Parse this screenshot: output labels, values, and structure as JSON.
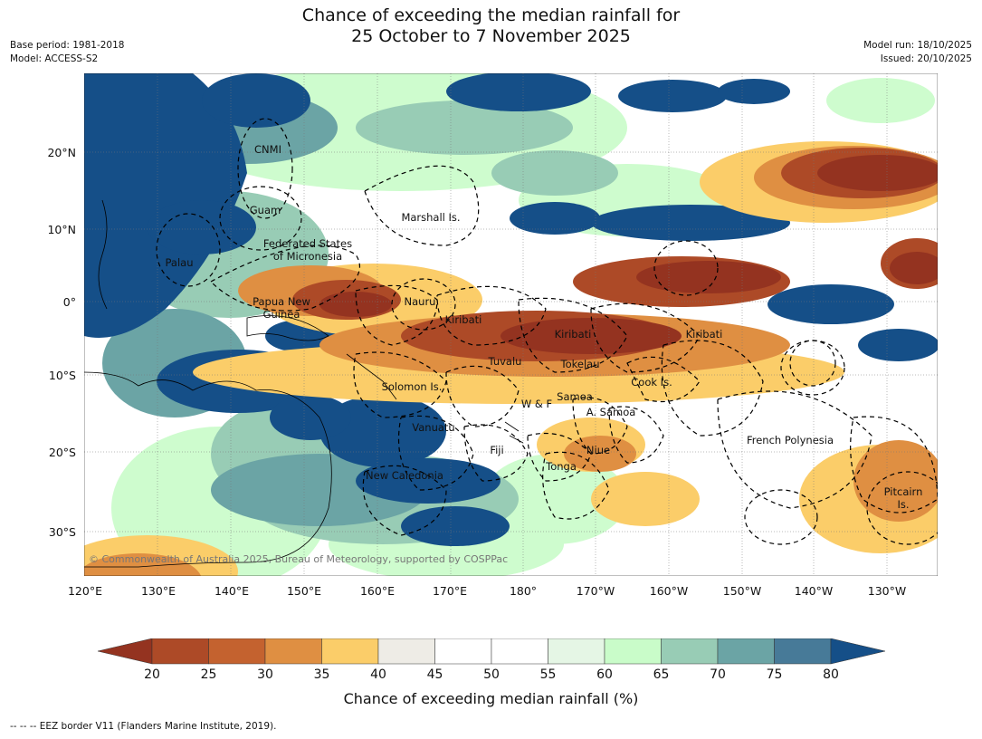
{
  "title": {
    "line1": "Chance of exceeding the median rainfall for",
    "line2": "25 October to 7 November 2025"
  },
  "meta": {
    "base_period": "Base period: 1981-2018",
    "model": "Model: ACCESS-S2",
    "model_run": "Model run: 18/10/2025",
    "issued": "Issued: 20/10/2025"
  },
  "axes": {
    "lat_labels": [
      "20°N",
      "10°N",
      "0°",
      "10°S",
      "20°S",
      "30°S"
    ],
    "lon_labels": [
      "120°E",
      "130°E",
      "140°E",
      "150°E",
      "160°E",
      "170°E",
      "180°",
      "170°W",
      "160°W",
      "150°W",
      "140°W",
      "130°W"
    ]
  },
  "regions": {
    "cnmi": "CNMI",
    "guam": "Guam",
    "marshall": "Marshall Is.",
    "fsm_line1": "Federated States",
    "fsm_line2": "of Micronesia",
    "palau": "Palau",
    "png_line1": "Papua New",
    "png_line2": "Guinea",
    "nauru": "Nauru",
    "kiribati_west": "Kiribati",
    "kiribati_central": "Kiribati",
    "kiribati_east": "Kiribati",
    "tuvalu": "Tuvalu",
    "tokelau": "Tokelau",
    "cook": "Cook Is.",
    "solomon": "Solomon Is.",
    "wf": "W & F",
    "samoa": "Samoa",
    "amsamoa": "A. Samoa",
    "vanuatu": "Vanuatu",
    "fiji": "Fiji",
    "niue": "Niue",
    "tonga": "Tonga",
    "new_caledonia": "New Caledonia",
    "french_polynesia": "French Polynesia",
    "pitcairn_line1": "Pitcairn",
    "pitcairn_line2": "Is."
  },
  "copyright": "© Commonwealth of Australia 2025, Bureau of Meteorology, supported by COSPPac",
  "colorbar": {
    "ticks": [
      "20",
      "25",
      "30",
      "35",
      "40",
      "45",
      "50",
      "55",
      "60",
      "65",
      "70",
      "75",
      "80"
    ],
    "colors": [
      "#943320",
      "#ad4a27",
      "#c4622f",
      "#df8f42",
      "#fbcd69",
      "#eeece6",
      "#ffffff",
      "#ffffff",
      "#e5f6e5",
      "#c9fcc9",
      "#98ccb5",
      "#6ba4a5",
      "#477a98",
      "#154f88"
    ],
    "label": "Chance of exceeding median rainfall (%)"
  },
  "legend": {
    "eez": "--  --  -- EEZ border V11 (Flanders Marine Institute, 2019)."
  }
}
